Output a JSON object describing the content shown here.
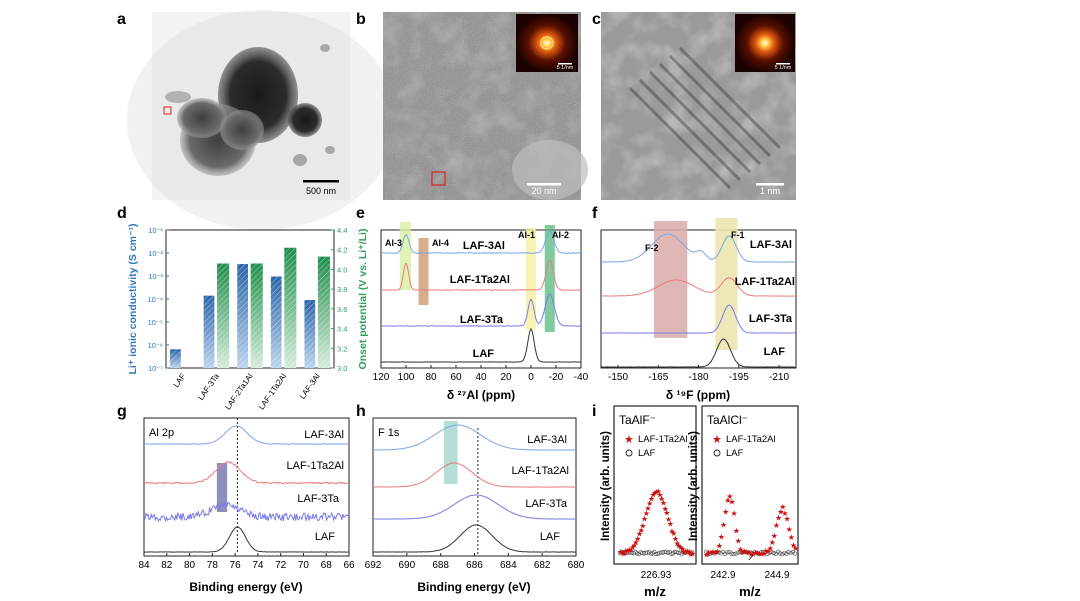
{
  "colors": {
    "blue": "#7aa6e6",
    "red": "#ea7b7b",
    "violet": "#7a7ae8",
    "black": "#333333",
    "green_bar": "#2e9e5a",
    "blue_bar": "#3b78b8",
    "red_marker": "#cc1111"
  },
  "panels": {
    "a": {
      "letter": "a",
      "scale": "500 nm"
    },
    "b": {
      "letter": "b",
      "scale": "20 nm",
      "inset_scale": "5 1/nm"
    },
    "c": {
      "letter": "c",
      "scale": "1 nm",
      "inset_scale": "5 1/nm"
    },
    "d": {
      "letter": "d",
      "ylabel_left": "Li⁺ ionic conductivity (S cm⁻¹)",
      "ylabel_right": "Onset potential (V vs. Li⁺/Li)",
      "left_ticks": [
        "10⁻¹",
        "10⁻²",
        "10⁻³",
        "10⁻⁴",
        "10⁻⁵",
        "10⁻⁶",
        "10⁻⁷"
      ],
      "right_ticks": [
        "4.4",
        "4.2",
        "4.0",
        "3.8",
        "3.6",
        "3.4",
        "3.2",
        "3.0"
      ]
    },
    "e": {
      "letter": "e",
      "xlabel": "δ ²⁷Al (ppm)",
      "xticks": [
        "120",
        "100",
        "80",
        "60",
        "40",
        "20",
        "0",
        "-20",
        "-40"
      ],
      "series_labels": [
        "LAF-3Al",
        "LAF-1Ta2Al",
        "LAF-3Ta",
        "LAF"
      ],
      "region_labels": [
        "Al-3",
        "Al-4",
        "Al-1",
        "Al-2"
      ]
    },
    "f": {
      "letter": "f",
      "xlabel": "δ ¹⁹F (ppm)",
      "xticks": [
        "-150",
        "-165",
        "-180",
        "-195",
        "-210"
      ],
      "series_labels": [
        "LAF-3Al",
        "LAF-1Ta2Al",
        "LAF-3Ta",
        "LAF"
      ],
      "region_labels": [
        "F-2",
        "F-1"
      ]
    },
    "g": {
      "letter": "g",
      "title": "Al 2p",
      "xlabel": "Binding energy (eV)",
      "xticks": [
        "84",
        "82",
        "80",
        "78",
        "76",
        "74",
        "72",
        "70",
        "68",
        "66"
      ],
      "series_labels": [
        "LAF-3Al",
        "LAF-1Ta2Al",
        "LAF-3Ta",
        "LAF"
      ]
    },
    "h": {
      "letter": "h",
      "title": "F 1s",
      "xlabel": "Binding energy (eV)",
      "xticks": [
        "692",
        "690",
        "688",
        "686",
        "684",
        "682",
        "680"
      ],
      "series_labels": [
        "LAF-3Al",
        "LAF-1Ta2Al",
        "LAF-3Ta",
        "LAF"
      ]
    },
    "i": {
      "letter": "i",
      "ylabel": "Intensity (arb. units)",
      "xlabel": "m/z",
      "left": {
        "title": "TaAlF⁻",
        "legend": [
          "LAF-1Ta2Al",
          "LAF"
        ],
        "xtick": "226.93"
      },
      "right": {
        "title": "TaAlCl⁻",
        "legend": [
          "LAF-1Ta2Al",
          "LAF"
        ],
        "xticks": [
          "242.9",
          "244.9"
        ]
      }
    }
  },
  "chart_data": [
    {
      "panel": "d",
      "type": "bar",
      "categories": [
        "LAF",
        "LAF-3Ta",
        "LAF-2Ta1Al",
        "LAF-1Ta2Al",
        "LAF-3Al"
      ],
      "series": [
        {
          "name": "Li⁺ ionic conductivity (S cm⁻¹)",
          "axis": "left",
          "log": true,
          "values": [
            6.5e-07,
            0.00014,
            0.0033,
            0.00095,
            9e-05
          ]
        },
        {
          "name": "Onset potential (V vs. Li⁺/Li)",
          "axis": "right",
          "values": [
            null,
            4.06,
            4.06,
            4.22,
            4.13
          ]
        }
      ],
      "ylim_left": [
        1e-07,
        0.1
      ],
      "ylim_right": [
        3.0,
        4.4
      ]
    },
    {
      "panel": "e",
      "type": "line",
      "xlim": [
        120,
        -40
      ],
      "series": [
        {
          "name": "LAF-3Al",
          "peaks": [
            100,
            -15
          ]
        },
        {
          "name": "LAF-1Ta2Al",
          "peaks": [
            100,
            -15
          ]
        },
        {
          "name": "LAF-3Ta",
          "peaks": [
            0,
            -15
          ]
        },
        {
          "name": "LAF",
          "peaks": [
            0
          ]
        }
      ]
    },
    {
      "panel": "f",
      "type": "line",
      "xlim": [
        -140,
        -210
      ],
      "series": [
        {
          "name": "LAF-3Al",
          "peaks": [
            -166,
            -186
          ]
        },
        {
          "name": "LAF-1Ta2Al",
          "peaks": [
            -168,
            -186
          ]
        },
        {
          "name": "LAF-3Ta",
          "peaks": [
            -186
          ]
        },
        {
          "name": "LAF",
          "peaks": [
            -184
          ]
        }
      ]
    },
    {
      "panel": "g",
      "type": "line",
      "xlim": [
        84,
        66
      ],
      "series": [
        {
          "name": "LAF-3Al",
          "peak": 75.9
        },
        {
          "name": "LAF-1Ta2Al",
          "peak": 76.6
        },
        {
          "name": "LAF-3Ta",
          "peak": 76.8
        },
        {
          "name": "LAF",
          "peak": 75.8
        }
      ]
    },
    {
      "panel": "h",
      "type": "line",
      "xlim": [
        692,
        680
      ],
      "series": [
        {
          "name": "LAF-3Al",
          "peak": 687.0
        },
        {
          "name": "LAF-1Ta2Al",
          "peak": 687.2
        },
        {
          "name": "LAF-3Ta",
          "peak": 685.9
        },
        {
          "name": "LAF",
          "peak": 685.9
        }
      ]
    },
    {
      "panel": "i",
      "type": "scatter",
      "series": [
        {
          "name": "LAF-1Ta2Al",
          "peaks_mz": [
            226.93,
            242.9,
            244.9
          ]
        },
        {
          "name": "LAF",
          "peaks_mz": []
        }
      ]
    }
  ]
}
